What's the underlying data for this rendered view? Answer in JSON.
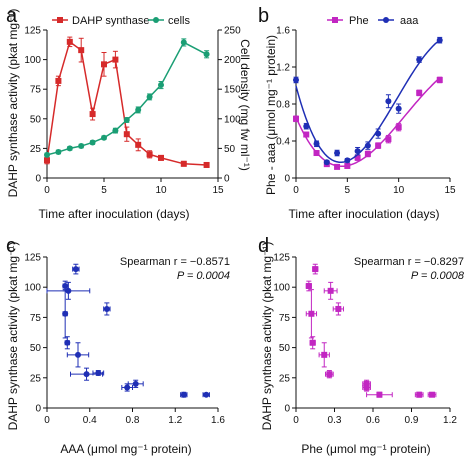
{
  "panels": {
    "a": {
      "letter": "a",
      "xlabel": "Time after inoculation (days)",
      "ylabel_left": "DAHP synthase activity (pkat mg⁻¹)",
      "ylabel_right": "Cell density (mg fw ml⁻¹)",
      "legend_1": "DAHP synthase",
      "legend_2": "cells"
    },
    "b": {
      "letter": "b",
      "xlabel": "Time after inoculation (days)",
      "ylabel": "Phe - aaa (μmol mg⁻¹ protein)",
      "legend_1": "Phe",
      "legend_2": "aaa"
    },
    "c": {
      "letter": "c",
      "xlabel": "AAA (μmol mg⁻¹ protein)",
      "ylabel": "DAHP synthase activity (pkat mg⁻¹)",
      "stat_r": "Spearman r = −0.8571",
      "stat_p": "P = 0.0004"
    },
    "d": {
      "letter": "d",
      "xlabel": "Phe (μmol mg⁻¹ protein)",
      "ylabel": "DAHP synthase activity (pkat mg⁻¹)",
      "stat_r": "Spearman r = −0.8297",
      "stat_p": "P = 0.0008"
    }
  },
  "colors": {
    "red": "#d62a2a",
    "green": "#1a9e74",
    "magenta": "#c226c2",
    "blue": "#1f2fb5"
  },
  "chart_data": [
    {
      "type": "line",
      "xlim": [
        0,
        15
      ],
      "xticks": [
        0,
        5,
        10,
        15
      ],
      "ylim": [
        0,
        125
      ],
      "yticks": [
        0,
        25,
        50,
        75,
        100,
        125
      ],
      "y2lim": [
        0,
        250
      ],
      "y2ticks": [
        0,
        50,
        100,
        150,
        200,
        250
      ],
      "series": [
        {
          "name": "DAHP synthase",
          "axis": "left",
          "color": "#d62a2a",
          "x": [
            0,
            1,
            2,
            3,
            4,
            5,
            6,
            7,
            8,
            9,
            10,
            12,
            14
          ],
          "y": [
            15,
            82,
            115,
            108,
            54,
            96,
            100,
            37,
            28,
            20,
            17,
            12,
            11
          ],
          "err": [
            3,
            4,
            4,
            10,
            5,
            10,
            7,
            6,
            5,
            3,
            2,
            2,
            1
          ]
        },
        {
          "name": "cells",
          "axis": "right",
          "color": "#1a9e74",
          "x": [
            0,
            1,
            2,
            3,
            4,
            5,
            6,
            7,
            8,
            9,
            10,
            12,
            14
          ],
          "y": [
            39,
            44,
            50,
            54,
            60,
            68,
            80,
            98,
            115,
            137,
            157,
            229,
            209
          ],
          "err": [
            3,
            3,
            3,
            3,
            3,
            3,
            4,
            4,
            5,
            5,
            6,
            6,
            6
          ]
        }
      ]
    },
    {
      "type": "scatter",
      "xlim": [
        0,
        15
      ],
      "xticks": [
        0,
        5,
        10,
        15
      ],
      "ylim": [
        0,
        1.6
      ],
      "yticks": [
        0,
        0.4,
        0.8,
        1.2,
        1.6
      ],
      "series": [
        {
          "name": "Phe",
          "color": "#c226c2",
          "x": [
            0,
            1,
            2,
            3,
            4,
            5,
            6,
            7,
            8,
            9,
            10,
            12,
            14
          ],
          "y": [
            0.64,
            0.47,
            0.27,
            0.15,
            0.12,
            0.13,
            0.22,
            0.26,
            0.35,
            0.42,
            0.55,
            0.92,
            1.06
          ],
          "err": [
            0.03,
            0.02,
            0.02,
            0.02,
            0.02,
            0.02,
            0.03,
            0.03,
            0.03,
            0.04,
            0.04,
            0.03,
            0.03
          ]
        },
        {
          "name": "aaa",
          "color": "#1f2fb5",
          "x": [
            0,
            1,
            2,
            3,
            4,
            5,
            6,
            7,
            8,
            9,
            10,
            12,
            14
          ],
          "y": [
            1.06,
            0.56,
            0.37,
            0.17,
            0.27,
            0.19,
            0.29,
            0.35,
            0.48,
            0.83,
            0.75,
            1.28,
            1.49
          ],
          "err": [
            0.03,
            0.03,
            0.03,
            0.02,
            0.03,
            0.02,
            0.04,
            0.04,
            0.05,
            0.07,
            0.05,
            0.03,
            0.03
          ]
        }
      ]
    },
    {
      "type": "scatter",
      "xlim": [
        0,
        1.6
      ],
      "xticks": [
        0,
        0.4,
        0.8,
        1.2,
        1.6
      ],
      "ylim": [
        0,
        125
      ],
      "yticks": [
        0,
        25,
        50,
        75,
        100,
        125
      ],
      "series": [
        {
          "name": "",
          "color": "#1f2fb5",
          "x": [
            0.17,
            0.27,
            0.2,
            0.17,
            0.56,
            0.19,
            0.29,
            0.37,
            0.48,
            0.83,
            0.75,
            1.28,
            1.49
          ],
          "y": [
            101,
            115,
            97,
            78,
            82,
            54,
            44,
            28,
            29,
            20,
            17,
            11,
            11
          ],
          "xerr": [
            0.02,
            0.03,
            0.2,
            0.02,
            0.03,
            0.02,
            0.1,
            0.15,
            0.05,
            0.07,
            0.05,
            0.03,
            0.03
          ],
          "yerr": [
            4,
            4,
            7,
            20,
            5,
            5,
            10,
            5,
            2,
            3,
            3,
            2,
            1
          ]
        }
      ]
    },
    {
      "type": "scatter",
      "xlim": [
        0,
        1.2
      ],
      "xticks": [
        0,
        0.3,
        0.6,
        0.9,
        1.2
      ],
      "ylim": [
        0,
        125
      ],
      "yticks": [
        0,
        25,
        50,
        75,
        100,
        125
      ],
      "series": [
        {
          "name": "",
          "color": "#c226c2",
          "x": [
            0.1,
            0.15,
            0.27,
            0.12,
            0.33,
            0.13,
            0.22,
            0.26,
            0.55,
            0.55,
            0.65,
            0.96,
            1.06
          ],
          "y": [
            101,
            115,
            97,
            78,
            82,
            54,
            44,
            28,
            20,
            17,
            11,
            11,
            11
          ],
          "xerr": [
            0.02,
            0.02,
            0.05,
            0.04,
            0.04,
            0.02,
            0.04,
            0.03,
            0.03,
            0.03,
            0.1,
            0.03,
            0.03
          ],
          "yerr": [
            4,
            4,
            7,
            20,
            5,
            5,
            10,
            3,
            3,
            3,
            2,
            2,
            1
          ]
        }
      ]
    }
  ]
}
